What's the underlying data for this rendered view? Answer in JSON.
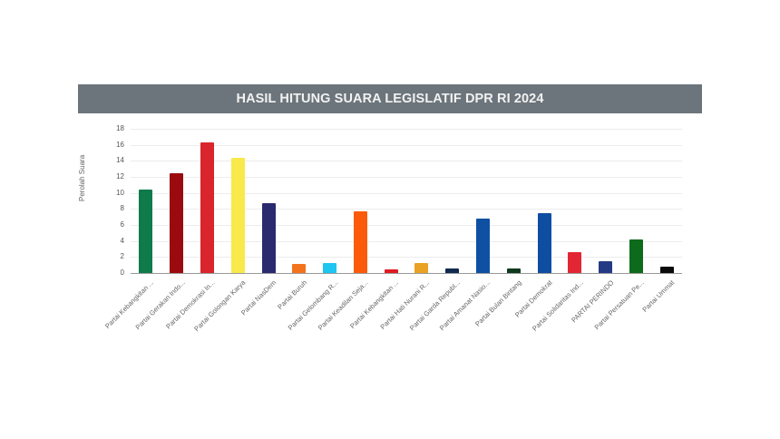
{
  "chart_data": {
    "type": "bar",
    "title": "HASIL HITUNG SUARA LEGISLATIF DPR RI 2024",
    "xlabel": "",
    "ylabel": "Perolah Suara",
    "ylim": [
      0,
      18
    ],
    "yticks": [
      0,
      2,
      4,
      6,
      8,
      10,
      12,
      14,
      16,
      18
    ],
    "grid": true,
    "legend": "none",
    "categories": [
      "Partai Kebangkitan ...",
      "Partai Gerakan Indo...",
      "Partai Demokrasi In...",
      "Partai Golongan Karya",
      "Partai NasDem",
      "Partai Buruh",
      "Partai Gelombang R...",
      "Partai Keadilan Seja...",
      "Partai Kebangkitan ...",
      "Partai Hati Nurani R...",
      "Partai Garda Republ...",
      "Partai Amanat Nasio...",
      "Partai Bulan Bintang",
      "Partai Demokrat",
      "Partai Solidaritas Ind...",
      "PARTAI PERINDO",
      "Partai Persatuan Pe...",
      "Partai Ummat"
    ],
    "values": [
      10.4,
      12.5,
      16.3,
      14.4,
      8.7,
      1.1,
      1.3,
      7.7,
      0.5,
      1.2,
      0.6,
      6.8,
      0.6,
      7.5,
      2.6,
      1.5,
      4.2,
      0.8
    ],
    "colors": [
      "#0f7a4a",
      "#9b0a0e",
      "#d9252b",
      "#f9e94a",
      "#2a2a6e",
      "#f3731c",
      "#1ec5f0",
      "#fb5a0a",
      "#de1b23",
      "#e9a223",
      "#10294f",
      "#0f50a3",
      "#0f3a1e",
      "#0e4da2",
      "#e32634",
      "#253a85",
      "#0d6b1c",
      "#0a0a0a"
    ]
  },
  "header": {
    "title": "HASIL HITUNG SUARA LEGISLATIF DPR RI 2024"
  }
}
